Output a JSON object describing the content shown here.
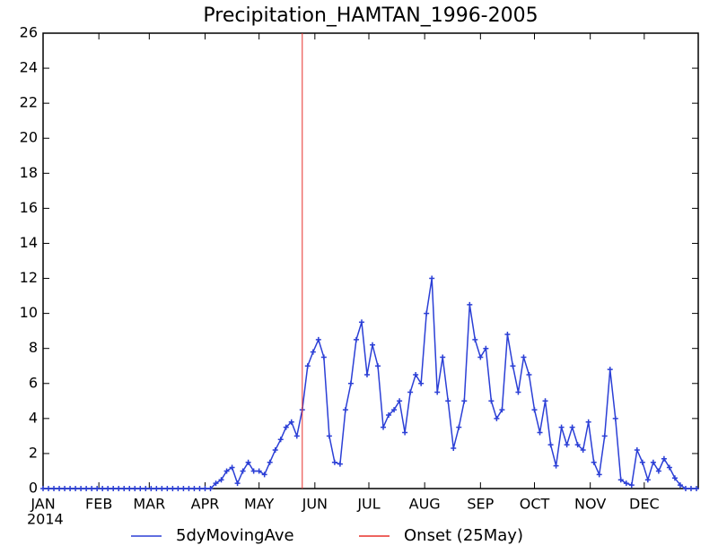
{
  "chart_data": {
    "type": "line",
    "title": "Precipitation_HAMTAN_1996-2005",
    "year_label": "2014",
    "x": [
      1,
      4,
      7,
      10,
      13,
      16,
      19,
      22,
      25,
      28,
      31,
      34,
      37,
      40,
      43,
      46,
      49,
      52,
      55,
      58,
      61,
      64,
      67,
      70,
      73,
      76,
      79,
      82,
      85,
      88,
      91,
      94,
      97,
      100,
      103,
      106,
      109,
      112,
      115,
      118,
      121,
      124,
      127,
      130,
      133,
      136,
      139,
      142,
      145,
      148,
      151,
      154,
      157,
      160,
      163,
      166,
      169,
      172,
      175,
      178,
      181,
      184,
      187,
      190,
      193,
      196,
      199,
      202,
      205,
      208,
      211,
      214,
      217,
      220,
      223,
      226,
      229,
      232,
      235,
      238,
      241,
      244,
      247,
      250,
      253,
      256,
      259,
      262,
      265,
      268,
      271,
      274,
      277,
      280,
      283,
      286,
      289,
      292,
      295,
      298,
      301,
      304,
      307,
      310,
      313,
      316,
      319,
      322,
      325,
      328,
      331,
      334,
      337,
      340,
      343,
      346,
      349,
      352,
      355,
      358,
      361,
      364
    ],
    "series": [
      {
        "name": "5dyMovingAve",
        "color": "#2b3fd6",
        "values": [
          0,
          0,
          0,
          0,
          0,
          0,
          0,
          0,
          0,
          0,
          0,
          0,
          0,
          0,
          0,
          0,
          0,
          0,
          0,
          0,
          0,
          0,
          0,
          0,
          0,
          0,
          0,
          0,
          0,
          0,
          0,
          0,
          0.3,
          0.5,
          1.0,
          1.2,
          0.3,
          1.0,
          1.5,
          1.0,
          1.0,
          0.8,
          1.5,
          2.2,
          2.8,
          3.5,
          3.8,
          3.0,
          4.5,
          7.0,
          7.8,
          8.5,
          7.5,
          3.0,
          1.5,
          1.4,
          4.5,
          6.0,
          8.5,
          9.5,
          6.5,
          8.2,
          7.0,
          3.5,
          4.2,
          4.5,
          5.0,
          3.2,
          5.5,
          6.5,
          6.0,
          10.0,
          12.0,
          5.5,
          7.5,
          5.0,
          2.3,
          3.5,
          5.0,
          10.5,
          8.5,
          7.5,
          8.0,
          5.0,
          4.0,
          4.5,
          8.8,
          7.0,
          5.5,
          7.5,
          6.5,
          4.5,
          3.2,
          5.0,
          2.5,
          1.3,
          3.5,
          2.5,
          3.5,
          2.5,
          2.2,
          3.8,
          1.5,
          0.8,
          3.0,
          6.8,
          4.0,
          0.5,
          0.3,
          0.2,
          2.2,
          1.5,
          0.5,
          1.5,
          1.0,
          1.7,
          1.2,
          0.6,
          0.2,
          0,
          0,
          0
        ]
      }
    ],
    "vlines": [
      {
        "name": "Onset (25May)",
        "x": 145,
        "color": "#e8302a"
      }
    ],
    "xlim": [
      1,
      365
    ],
    "xticks": [
      {
        "value": 1,
        "label": "JAN"
      },
      {
        "value": 32,
        "label": "FEB"
      },
      {
        "value": 60,
        "label": "MAR"
      },
      {
        "value": 91,
        "label": "APR"
      },
      {
        "value": 121,
        "label": "MAY"
      },
      {
        "value": 152,
        "label": "JUN"
      },
      {
        "value": 182,
        "label": "JUL"
      },
      {
        "value": 213,
        "label": "AUG"
      },
      {
        "value": 244,
        "label": "SEP"
      },
      {
        "value": 274,
        "label": "OCT"
      },
      {
        "value": 305,
        "label": "NOV"
      },
      {
        "value": 335,
        "label": "DEC"
      }
    ],
    "ylim": [
      0,
      26
    ],
    "yticks": [
      0,
      2,
      4,
      6,
      8,
      10,
      12,
      14,
      16,
      18,
      20,
      22,
      24,
      26
    ],
    "legend": "bottom"
  }
}
